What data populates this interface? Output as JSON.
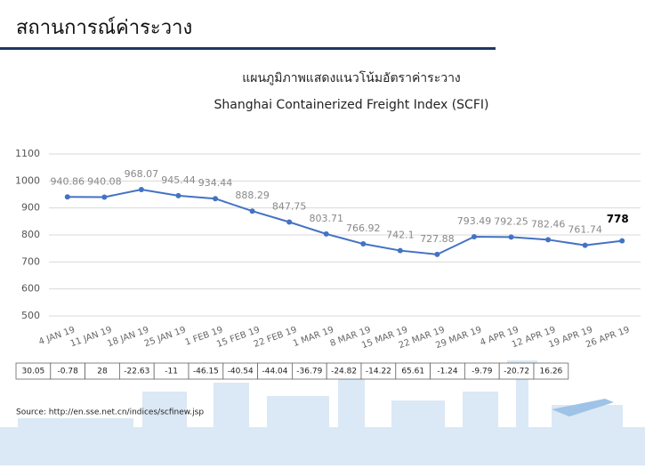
{
  "header": {
    "title": "สถานการณ์ค่าระวาง"
  },
  "chart_data": {
    "type": "line",
    "title": "แผนภูมิภาพแสดงแนวโน้มอัตราค่าระวาง",
    "subtitle": "Shanghai Containerized Freight Index (SCFI)",
    "categories": [
      "4 JAN 19",
      "11 JAN 19",
      "18 JAN 19",
      "25 JAN 19",
      "1 FEB 19",
      "15 FEB 19",
      "22 FEB 19",
      "1 MAR 19",
      "8 MAR 19",
      "15 MAR 19",
      "22 MAR 19",
      "29 MAR 19",
      "4 APR 19",
      "12 APR 19",
      "19 APR 19",
      "26 APR 19"
    ],
    "values": [
      940.86,
      940.08,
      968.07,
      945.44,
      934.44,
      888.29,
      847.75,
      803.71,
      766.92,
      742.1,
      727.88,
      793.49,
      792.25,
      782.46,
      761.74,
      778
    ],
    "color": "#4472c4",
    "ylim": [
      500,
      1100
    ],
    "yticks": [
      500,
      600,
      700,
      800,
      900,
      1000,
      1100
    ],
    "grid": true,
    "change_table": [
      30.05,
      -0.78,
      28,
      -22.63,
      -11,
      -46.15,
      -40.54,
      -44.04,
      -36.79,
      -24.82,
      -14.22,
      65.61,
      -1.24,
      -9.79,
      -20.72,
      16.26
    ],
    "source": "Source: http://en.sse.net.cn/indices/scfinew.jsp"
  }
}
